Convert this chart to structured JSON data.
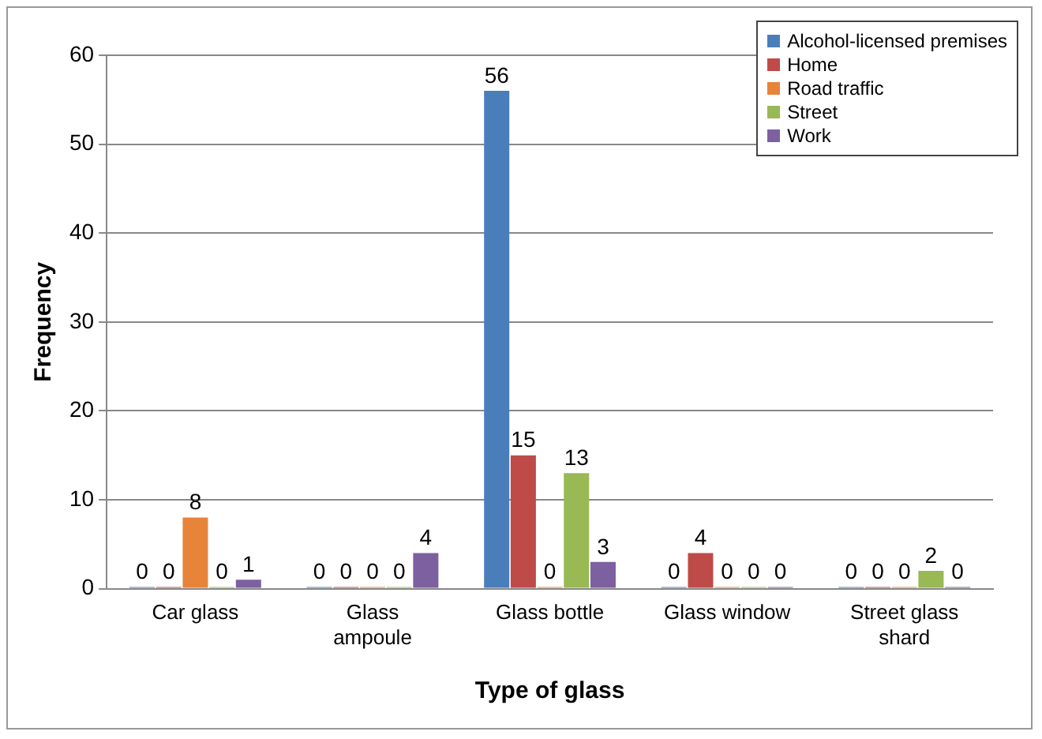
{
  "chart_data": {
    "type": "bar",
    "xlabel": "Type of glass",
    "ylabel": "Frequency",
    "categories": [
      "Car glass",
      "Glass ampoule",
      "Glass bottle",
      "Glass window",
      "Street glass shard"
    ],
    "series": [
      {
        "name": "Alcohol-licensed premises",
        "color": "#4a7ebb",
        "values": [
          0,
          0,
          56,
          0,
          0
        ]
      },
      {
        "name": "Home",
        "color": "#be4b48",
        "values": [
          0,
          0,
          15,
          4,
          0
        ]
      },
      {
        "name": "Road traffic",
        "color": "#e8833a",
        "values": [
          8,
          0,
          0,
          0,
          0
        ]
      },
      {
        "name": "Street",
        "color": "#98b954",
        "values": [
          0,
          0,
          13,
          0,
          2
        ]
      },
      {
        "name": "Work",
        "color": "#7d60a0",
        "values": [
          1,
          4,
          3,
          0,
          0
        ]
      }
    ],
    "ylim": [
      0,
      60
    ],
    "yticks": [
      0,
      10,
      20,
      30,
      40,
      50,
      60
    ],
    "grid": "y",
    "legend": "top right",
    "data_labels": true
  }
}
